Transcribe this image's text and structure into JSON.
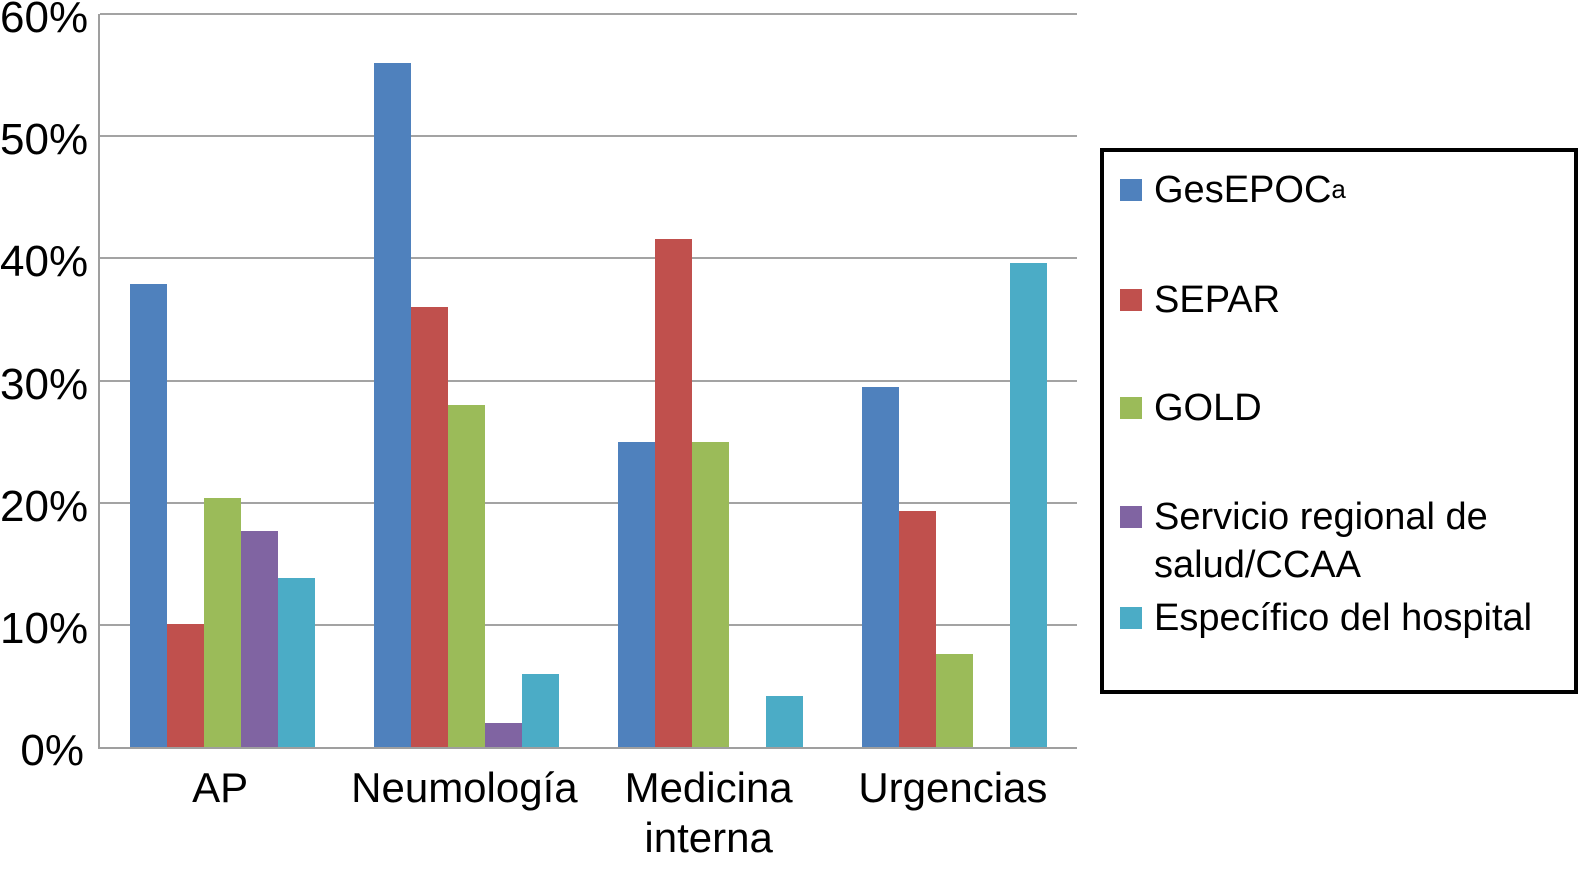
{
  "figure": {
    "background": "#ffffff"
  },
  "chart_data": {
    "type": "bar",
    "title": "",
    "xlabel": "",
    "ylabel": "",
    "categories": [
      "AP",
      "Neumología",
      "Medicina interna",
      "Urgencias"
    ],
    "category_label_lines": [
      [
        "AP"
      ],
      [
        "Neumología"
      ],
      [
        "Medicina",
        "interna"
      ],
      [
        "Urgencias"
      ]
    ],
    "series": [
      {
        "name": "GesEPOC",
        "superscript": "a",
        "color": "#4F81BD",
        "values": [
          37.9,
          56.0,
          25.0,
          29.5
        ]
      },
      {
        "name": "SEPAR",
        "color": "#C0504D",
        "values": [
          10.1,
          36.0,
          41.6,
          19.3
        ]
      },
      {
        "name": "GOLD",
        "color": "#9BBB59",
        "values": [
          20.4,
          28.0,
          25.0,
          7.6
        ]
      },
      {
        "name": "Servicio regional de salud/CCAA",
        "color": "#8064A2",
        "values": [
          17.7,
          2.0,
          0,
          0
        ]
      },
      {
        "name": "Específico del hospital",
        "color": "#4BACC6",
        "values": [
          13.8,
          6.0,
          4.2,
          39.6
        ]
      }
    ],
    "ylim": [
      0,
      60
    ],
    "yticks": [
      0,
      10,
      20,
      30,
      40,
      50,
      60
    ],
    "ytick_labels": [
      "0%",
      "10%",
      "20%",
      "30%",
      "40%",
      "50%",
      "60%"
    ],
    "grid": "horizontal",
    "legend_position": "right",
    "legend_entries": [
      {
        "lines": [
          "GesEPOC"
        ],
        "superscript": "a",
        "color": "#4F81BD"
      },
      {
        "lines": [
          "SEPAR"
        ],
        "color": "#C0504D"
      },
      {
        "lines": [
          "GOLD"
        ],
        "color": "#9BBB59"
      },
      {
        "lines": [
          "Servicio regional de",
          "salud/CCAA"
        ],
        "color": "#8064A2"
      },
      {
        "lines": [
          "Específico del hospital"
        ],
        "color": "#4BACC6"
      }
    ],
    "colors": {
      "grid": "#a3a3a3",
      "axis": "#9f9f9f",
      "text": "#000000",
      "legend_border": "#000000",
      "plot_background": "#ffffff"
    }
  }
}
